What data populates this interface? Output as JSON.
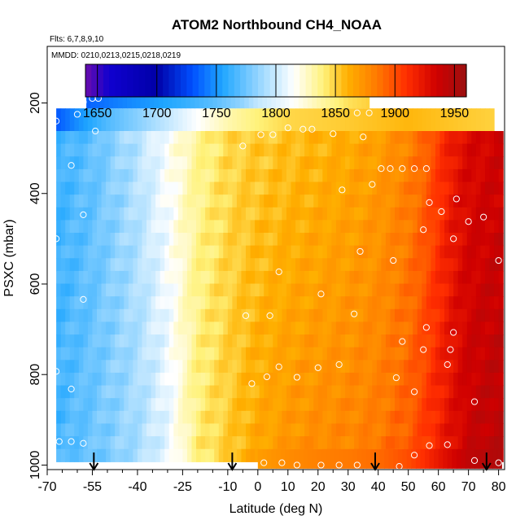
{
  "chart_data": {
    "type": "heatmap",
    "title": "ATOM2 Northbound CH4_NOAA",
    "flights_note": "Flts: 6,7,8,9,10",
    "dates_note": "MMDD: 0210,0213,0215,0218,0219",
    "xlabel": "Latitude (deg N)",
    "ylabel": "PSXC (mbar)",
    "xlim": [
      -70,
      82
    ],
    "ylim": [
      1010,
      75
    ],
    "x_ticks": [
      -70,
      -55,
      -40,
      -25,
      -10,
      0,
      10,
      20,
      30,
      40,
      50,
      60,
      70,
      80
    ],
    "x_minor_ticks": [
      -65,
      -60,
      -50,
      -45,
      -35,
      -30,
      -20,
      -15,
      -5,
      5,
      15,
      25,
      35,
      45,
      55,
      65,
      75
    ],
    "y_ticks": [
      200,
      400,
      600,
      800,
      1000
    ],
    "colorbar": {
      "min": 1640,
      "max": 1960,
      "ticks": [
        1650,
        1700,
        1750,
        1800,
        1850,
        1900,
        1950
      ],
      "colors": [
        "#6a0dad",
        "#1000cf",
        "#0000a8",
        "#0050ff",
        "#1fa6ff",
        "#a6dcff",
        "#ffffff",
        "#fff27a",
        "#ffb000",
        "#ff7a00",
        "#ff2d00",
        "#cf0000",
        "#9b1010"
      ],
      "color_stops": [
        1640,
        1660,
        1700,
        1730,
        1755,
        1790,
        1815,
        1840,
        1860,
        1885,
        1910,
        1935,
        1960
      ]
    },
    "profile": {
      "lat": [
        -70,
        -55,
        -40,
        -30,
        -20,
        -10,
        -5,
        0,
        10,
        20,
        30,
        40,
        50,
        55,
        60,
        65,
        70,
        80
      ],
      "lower_values": [
        1762,
        1775,
        1790,
        1808,
        1840,
        1852,
        1858,
        1864,
        1872,
        1877,
        1880,
        1885,
        1895,
        1905,
        1917,
        1928,
        1938,
        1945
      ],
      "upper_values": [
        1760,
        1772,
        1795,
        1815,
        1835,
        1847,
        1850,
        1852,
        1855,
        1858,
        1862,
        1868,
        1880,
        1890,
        1905,
        1922,
        1930,
        1935
      ]
    },
    "top_band": {
      "lat": [
        -57,
        -45,
        -35,
        -25,
        -15,
        -5,
        0,
        10,
        20,
        30,
        37
      ],
      "values": [
        1735,
        1745,
        1752,
        1760,
        1770,
        1785,
        1798,
        1812,
        1830,
        1845,
        1850
      ]
    },
    "second_band": {
      "lat": [
        -67,
        -60,
        -50,
        -40,
        -30,
        -20,
        -10,
        0,
        10,
        20,
        30,
        40,
        50,
        60,
        70,
        78
      ],
      "values": [
        1732,
        1748,
        1768,
        1782,
        1798,
        1815,
        1830,
        1840,
        1848,
        1850,
        1852,
        1855,
        1858,
        1855,
        1852,
        1850
      ]
    },
    "sample_points": [
      {
        "lat": -55,
        "p": 190
      },
      {
        "lat": -53,
        "p": 190
      },
      {
        "lat": -58,
        "p": 198
      },
      {
        "lat": -60,
        "p": 225
      },
      {
        "lat": -67,
        "p": 240
      },
      {
        "lat": -54,
        "p": 262
      },
      {
        "lat": -62,
        "p": 338
      },
      {
        "lat": -58,
        "p": 447
      },
      {
        "lat": -67,
        "p": 500
      },
      {
        "lat": -58,
        "p": 634
      },
      {
        "lat": -67,
        "p": 793
      },
      {
        "lat": -62,
        "p": 832
      },
      {
        "lat": -66,
        "p": 948
      },
      {
        "lat": -62,
        "p": 948
      },
      {
        "lat": -58,
        "p": 952
      },
      {
        "lat": -5,
        "p": 295
      },
      {
        "lat": 1,
        "p": 270
      },
      {
        "lat": 5,
        "p": 270
      },
      {
        "lat": 10,
        "p": 255
      },
      {
        "lat": 15,
        "p": 258
      },
      {
        "lat": 18,
        "p": 258
      },
      {
        "lat": 25,
        "p": 268
      },
      {
        "lat": 33,
        "p": 222
      },
      {
        "lat": 37,
        "p": 222
      },
      {
        "lat": 35,
        "p": 275
      },
      {
        "lat": 28,
        "p": 392
      },
      {
        "lat": 38,
        "p": 380
      },
      {
        "lat": 41,
        "p": 345
      },
      {
        "lat": 44,
        "p": 345
      },
      {
        "lat": 48,
        "p": 345
      },
      {
        "lat": 52,
        "p": 345
      },
      {
        "lat": 56,
        "p": 345
      },
      {
        "lat": 57,
        "p": 420
      },
      {
        "lat": 61,
        "p": 440
      },
      {
        "lat": 66,
        "p": 412
      },
      {
        "lat": 70,
        "p": 462
      },
      {
        "lat": 75,
        "p": 452
      },
      {
        "lat": 80,
        "p": 548
      },
      {
        "lat": 34,
        "p": 528
      },
      {
        "lat": 45,
        "p": 548
      },
      {
        "lat": 55,
        "p": 480
      },
      {
        "lat": 65,
        "p": 500
      },
      {
        "lat": 7,
        "p": 573
      },
      {
        "lat": 21,
        "p": 622
      },
      {
        "lat": 32,
        "p": 666
      },
      {
        "lat": -4,
        "p": 670
      },
      {
        "lat": 4,
        "p": 670
      },
      {
        "lat": 56,
        "p": 696
      },
      {
        "lat": 65,
        "p": 707
      },
      {
        "lat": 48,
        "p": 727
      },
      {
        "lat": 55,
        "p": 745
      },
      {
        "lat": 64,
        "p": 745
      },
      {
        "lat": 20,
        "p": 785
      },
      {
        "lat": 27,
        "p": 778
      },
      {
        "lat": 7,
        "p": 783
      },
      {
        "lat": 3,
        "p": 805
      },
      {
        "lat": -2,
        "p": 820
      },
      {
        "lat": 13,
        "p": 806
      },
      {
        "lat": 46,
        "p": 807
      },
      {
        "lat": 52,
        "p": 838
      },
      {
        "lat": 63,
        "p": 778
      },
      {
        "lat": 72,
        "p": 860
      },
      {
        "lat": 57,
        "p": 957
      },
      {
        "lat": 63,
        "p": 955
      },
      {
        "lat": 52,
        "p": 978
      },
      {
        "lat": 72,
        "p": 990
      },
      {
        "lat": 80,
        "p": 995
      },
      {
        "lat": 2,
        "p": 995
      },
      {
        "lat": 8,
        "p": 995
      },
      {
        "lat": 13,
        "p": 1000
      },
      {
        "lat": 21,
        "p": 1000
      },
      {
        "lat": 27,
        "p": 1000
      },
      {
        "lat": 33,
        "p": 1000
      },
      {
        "lat": 47,
        "p": 1003
      }
    ],
    "arrows_lat": [
      -54.5,
      -8.5,
      39,
      76
    ]
  }
}
